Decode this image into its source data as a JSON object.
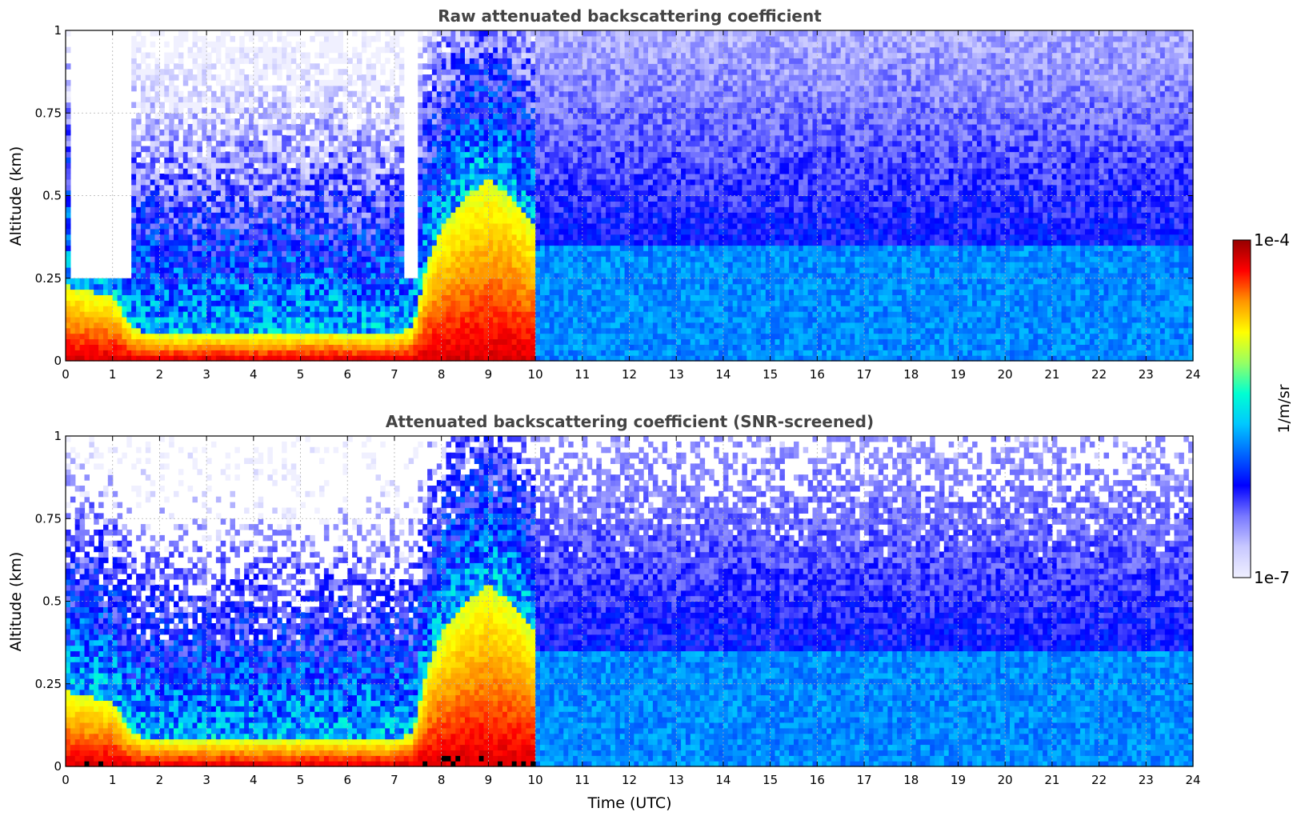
{
  "chart_data": [
    {
      "type": "heatmap",
      "title": "Raw attenuated backscattering coefficient",
      "xlabel": "",
      "ylabel": "Altitude (km)",
      "xlim": [
        0,
        24
      ],
      "ylim": [
        0,
        1
      ],
      "x_ticks": [
        "0",
        "1",
        "2",
        "3",
        "4",
        "5",
        "6",
        "7",
        "8",
        "9",
        "10",
        "11",
        "12",
        "13",
        "14",
        "15",
        "16",
        "17",
        "18",
        "19",
        "20",
        "21",
        "22",
        "23",
        "24"
      ],
      "y_ticks": [
        "0",
        "0.25",
        "0.5",
        "0.75",
        "1"
      ],
      "grid": true,
      "boundary_layer_top_km": [
        [
          0.0,
          0.23
        ],
        [
          0.5,
          0.21
        ],
        [
          1.0,
          0.2
        ],
        [
          1.4,
          0.1
        ],
        [
          2.0,
          0.08
        ],
        [
          3.0,
          0.08
        ],
        [
          4.0,
          0.08
        ],
        [
          5.0,
          0.08
        ],
        [
          5.6,
          0.09
        ],
        [
          6.0,
          0.08
        ],
        [
          7.0,
          0.08
        ],
        [
          7.4,
          0.1
        ],
        [
          7.7,
          0.3
        ],
        [
          8.0,
          0.4
        ],
        [
          8.5,
          0.5
        ],
        [
          9.0,
          0.55
        ],
        [
          9.5,
          0.5
        ],
        [
          10.0,
          0.4
        ]
      ],
      "missing_data_segments_utc": [
        [
          0.1,
          1.4
        ],
        [
          7.2,
          7.5
        ]
      ]
    },
    {
      "type": "heatmap",
      "title": "Attenuated backscattering coefficient (SNR-screened)",
      "xlabel": "Time (UTC)",
      "ylabel": "Altitude (km)",
      "xlim": [
        0,
        24
      ],
      "ylim": [
        0,
        1
      ],
      "x_ticks": [
        "0",
        "1",
        "2",
        "3",
        "4",
        "5",
        "6",
        "7",
        "8",
        "9",
        "10",
        "11",
        "12",
        "13",
        "14",
        "15",
        "16",
        "17",
        "18",
        "19",
        "20",
        "21",
        "22",
        "23",
        "24"
      ],
      "y_ticks": [
        "0",
        "0.25",
        "0.5",
        "0.75",
        "1"
      ],
      "grid": true,
      "boundary_layer_top_km": [
        [
          0.0,
          0.23
        ],
        [
          0.5,
          0.21
        ],
        [
          1.0,
          0.2
        ],
        [
          1.4,
          0.1
        ],
        [
          2.0,
          0.08
        ],
        [
          3.0,
          0.08
        ],
        [
          4.0,
          0.08
        ],
        [
          5.0,
          0.08
        ],
        [
          5.6,
          0.09
        ],
        [
          6.0,
          0.08
        ],
        [
          7.0,
          0.08
        ],
        [
          7.4,
          0.1
        ],
        [
          7.7,
          0.3
        ],
        [
          8.0,
          0.4
        ],
        [
          8.5,
          0.5
        ],
        [
          9.0,
          0.55
        ],
        [
          9.5,
          0.5
        ],
        [
          10.0,
          0.4
        ]
      ]
    }
  ],
  "colorbar": {
    "label": "1/m/sr",
    "max_label": "1e-4",
    "min_label": "1e-7",
    "scale": "log",
    "colormap": [
      "#f0f0ff",
      "#c8c8ff",
      "#7878ff",
      "#0000ff",
      "#0064ff",
      "#00c8ff",
      "#00ffd2",
      "#96ff64",
      "#ffff00",
      "#ff9600",
      "#ff0000",
      "#960000"
    ]
  },
  "colors": {
    "missing": "#ffffff",
    "saturated": "#000000"
  }
}
